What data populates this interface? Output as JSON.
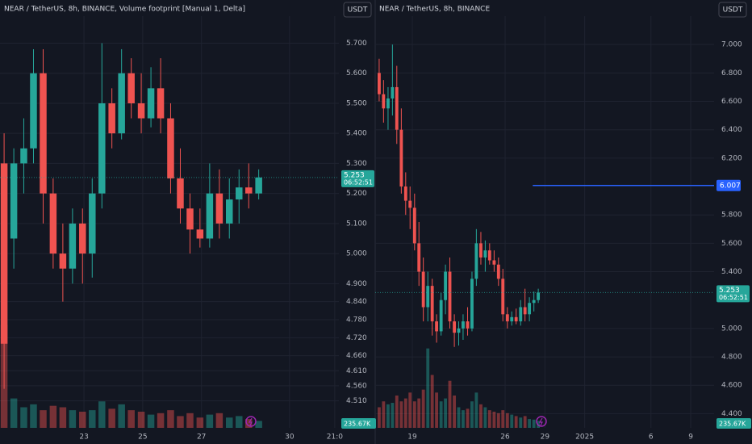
{
  "panels": [
    {
      "type": "candlestick",
      "title": "NEAR / TetherUS, 8h, BINANCE, Volume footprint [Manual 1, Delta]",
      "currency": "USDT",
      "xlim": [
        -2.86,
        8.68
      ],
      "xticks": [
        {
          "value": 0,
          "label": "23"
        },
        {
          "value": 2,
          "label": "25"
        },
        {
          "value": 4,
          "label": "27"
        },
        {
          "value": 7,
          "label": "30"
        },
        {
          "value": 8.54,
          "label": "21:0"
        }
      ],
      "ylim": [
        4.42,
        5.79
      ],
      "yticks": [
        {
          "value": 5.7,
          "label": "5.700"
        },
        {
          "value": 5.6,
          "label": "5.600"
        },
        {
          "value": 5.5,
          "label": "5.500"
        },
        {
          "value": 5.4,
          "label": "5.400"
        },
        {
          "value": 5.3,
          "label": "5.300"
        },
        {
          "value": 5.2,
          "label": "5.200"
        },
        {
          "value": 5.1,
          "label": "5.100"
        },
        {
          "value": 5.0,
          "label": "5.000"
        },
        {
          "value": 4.9,
          "label": "4.900"
        },
        {
          "value": 4.84,
          "label": "4.840"
        },
        {
          "value": 4.78,
          "label": "4.780"
        },
        {
          "value": 4.72,
          "label": "4.720"
        },
        {
          "value": 4.66,
          "label": "4.660"
        },
        {
          "value": 4.61,
          "label": "4.610"
        },
        {
          "value": 4.56,
          "label": "4.560"
        },
        {
          "value": 4.51,
          "label": "4.510"
        }
      ],
      "up_color": "#26a69a",
      "down_color": "#ef5350",
      "candles": {
        "x": [
          -2.72,
          -2.39,
          -2.05,
          -1.72,
          -1.39,
          -1.05,
          -0.72,
          -0.39,
          -0.05,
          0.28,
          0.61,
          0.95,
          1.28,
          1.61,
          1.95,
          2.28,
          2.61,
          2.95,
          3.28,
          3.61,
          3.95,
          4.28,
          4.61,
          4.95,
          5.28,
          5.61,
          5.95
        ],
        "open": [
          5.3,
          5.05,
          5.3,
          5.35,
          5.6,
          5.2,
          5.0,
          4.95,
          5.1,
          5.0,
          5.2,
          5.5,
          5.4,
          5.6,
          5.5,
          5.45,
          5.55,
          5.45,
          5.25,
          5.15,
          5.08,
          5.05,
          5.2,
          5.1,
          5.18,
          5.22,
          5.2
        ],
        "high": [
          5.4,
          5.35,
          5.45,
          5.68,
          5.68,
          5.25,
          5.1,
          5.15,
          5.15,
          5.25,
          5.7,
          5.55,
          5.68,
          5.65,
          5.6,
          5.62,
          5.65,
          5.5,
          5.35,
          5.2,
          5.15,
          5.3,
          5.28,
          5.25,
          5.28,
          5.3,
          5.28
        ],
        "low": [
          4.55,
          4.95,
          5.2,
          5.3,
          5.1,
          4.95,
          4.84,
          4.9,
          4.9,
          4.92,
          5.15,
          5.35,
          5.38,
          5.45,
          5.4,
          5.42,
          5.4,
          5.2,
          5.1,
          5.0,
          5.02,
          5.02,
          5.05,
          5.05,
          5.1,
          5.15,
          5.18
        ],
        "close": [
          4.7,
          5.3,
          5.35,
          5.6,
          5.2,
          5.0,
          4.95,
          5.1,
          5.0,
          5.2,
          5.5,
          5.4,
          5.6,
          5.5,
          5.45,
          5.55,
          5.45,
          5.25,
          5.15,
          5.08,
          5.05,
          5.2,
          5.1,
          5.18,
          5.22,
          5.2,
          5.253
        ]
      },
      "volume_ylim": [
        0,
        14000
      ],
      "volumes": [
        3500,
        1000,
        700,
        800,
        600,
        750,
        700,
        600,
        550,
        600,
        900,
        650,
        800,
        600,
        550,
        450,
        500,
        600,
        400,
        500,
        350,
        450,
        500,
        350,
        400,
        300,
        235.67
      ],
      "last_price": 5.253,
      "countdown": "06:52:51",
      "volume_label": "235.67K"
    },
    {
      "type": "candlestick",
      "title": "NEAR / TetherUS, 8h, BINANCE",
      "currency": "USDT",
      "xlim": [
        -2.8,
        22.76
      ],
      "xticks": [
        {
          "value": 0,
          "label": "19"
        },
        {
          "value": 7,
          "label": "26"
        },
        {
          "value": 10,
          "label": "29"
        },
        {
          "value": 13,
          "label": "2025"
        },
        {
          "value": 18,
          "label": "6"
        },
        {
          "value": 21,
          "label": "9"
        }
      ],
      "ylim": [
        4.3,
        7.2
      ],
      "yticks": [
        {
          "value": 7.0,
          "label": "7.000"
        },
        {
          "value": 6.8,
          "label": "6.800"
        },
        {
          "value": 6.6,
          "label": "6.600"
        },
        {
          "value": 6.4,
          "label": "6.400"
        },
        {
          "value": 6.2,
          "label": "6.200"
        },
        {
          "value": 5.8,
          "label": "5.800"
        },
        {
          "value": 5.6,
          "label": "5.600"
        },
        {
          "value": 5.4,
          "label": "5.400"
        },
        {
          "value": 5.0,
          "label": "5.000"
        },
        {
          "value": 4.8,
          "label": "4.800"
        },
        {
          "value": 4.6,
          "label": "4.600"
        },
        {
          "value": 4.4,
          "label": "4.400"
        }
      ],
      "up_color": "#26a69a",
      "down_color": "#ef5350",
      "candles": {
        "x": [
          -2.5,
          -2.17,
          -1.83,
          -1.5,
          -1.17,
          -0.83,
          -0.5,
          -0.17,
          0.17,
          0.5,
          0.83,
          1.17,
          1.5,
          1.83,
          2.17,
          2.5,
          2.83,
          3.17,
          3.5,
          3.83,
          4.17,
          4.5,
          4.83,
          5.17,
          5.5,
          5.83,
          6.17,
          6.5,
          6.83,
          7.17,
          7.5,
          7.83,
          8.17,
          8.5,
          8.83,
          9.17,
          9.5
        ],
        "open": [
          6.8,
          6.65,
          6.55,
          6.62,
          6.7,
          6.4,
          6.0,
          5.9,
          5.85,
          5.6,
          5.4,
          5.15,
          5.3,
          5.05,
          4.98,
          5.2,
          5.4,
          5.05,
          4.97,
          5.0,
          5.05,
          5.0,
          5.35,
          5.6,
          5.5,
          5.55,
          5.48,
          5.45,
          5.35,
          5.1,
          5.05,
          5.08,
          5.05,
          5.15,
          5.1,
          5.18,
          5.2
        ],
        "high": [
          6.9,
          6.75,
          6.7,
          7.0,
          6.85,
          6.55,
          6.1,
          6.0,
          5.95,
          5.75,
          5.5,
          5.4,
          5.35,
          5.1,
          5.25,
          5.45,
          5.5,
          5.1,
          5.05,
          5.1,
          5.15,
          5.4,
          5.7,
          5.68,
          5.62,
          5.6,
          5.55,
          5.5,
          5.42,
          5.15,
          5.12,
          5.14,
          5.2,
          5.28,
          5.22,
          5.26,
          5.28
        ],
        "low": [
          6.6,
          6.45,
          6.4,
          6.5,
          6.3,
          5.95,
          5.8,
          5.7,
          5.55,
          5.3,
          5.05,
          5.05,
          4.95,
          4.9,
          4.95,
          5.1,
          5.0,
          4.87,
          4.88,
          4.92,
          4.95,
          4.98,
          5.3,
          5.45,
          5.4,
          5.45,
          5.4,
          5.3,
          5.05,
          5.0,
          5.02,
          5.03,
          5.02,
          5.05,
          5.05,
          5.12,
          5.18
        ],
        "close": [
          6.65,
          6.55,
          6.62,
          6.7,
          6.4,
          6.0,
          5.9,
          5.85,
          5.6,
          5.4,
          5.15,
          5.3,
          5.05,
          4.98,
          5.2,
          5.4,
          5.05,
          4.97,
          5.0,
          5.05,
          5.0,
          5.35,
          5.6,
          5.5,
          5.55,
          5.48,
          5.45,
          5.35,
          5.1,
          5.05,
          5.08,
          5.05,
          5.15,
          5.1,
          5.18,
          5.2,
          5.253
        ]
      },
      "volume_ylim": [
        0,
        14000
      ],
      "volumes": [
        700,
        900,
        800,
        850,
        1100,
        900,
        1000,
        1200,
        900,
        1000,
        1300,
        2700,
        1800,
        1200,
        900,
        1000,
        1600,
        1100,
        700,
        600,
        650,
        900,
        1200,
        800,
        700,
        600,
        550,
        500,
        600,
        500,
        450,
        400,
        350,
        400,
        300,
        280,
        235.67
      ],
      "last_price": 5.253,
      "countdown": "06:52:51",
      "volume_label": "235.67K",
      "price_line": 6.007,
      "price_line_color": "#2962ff"
    }
  ]
}
